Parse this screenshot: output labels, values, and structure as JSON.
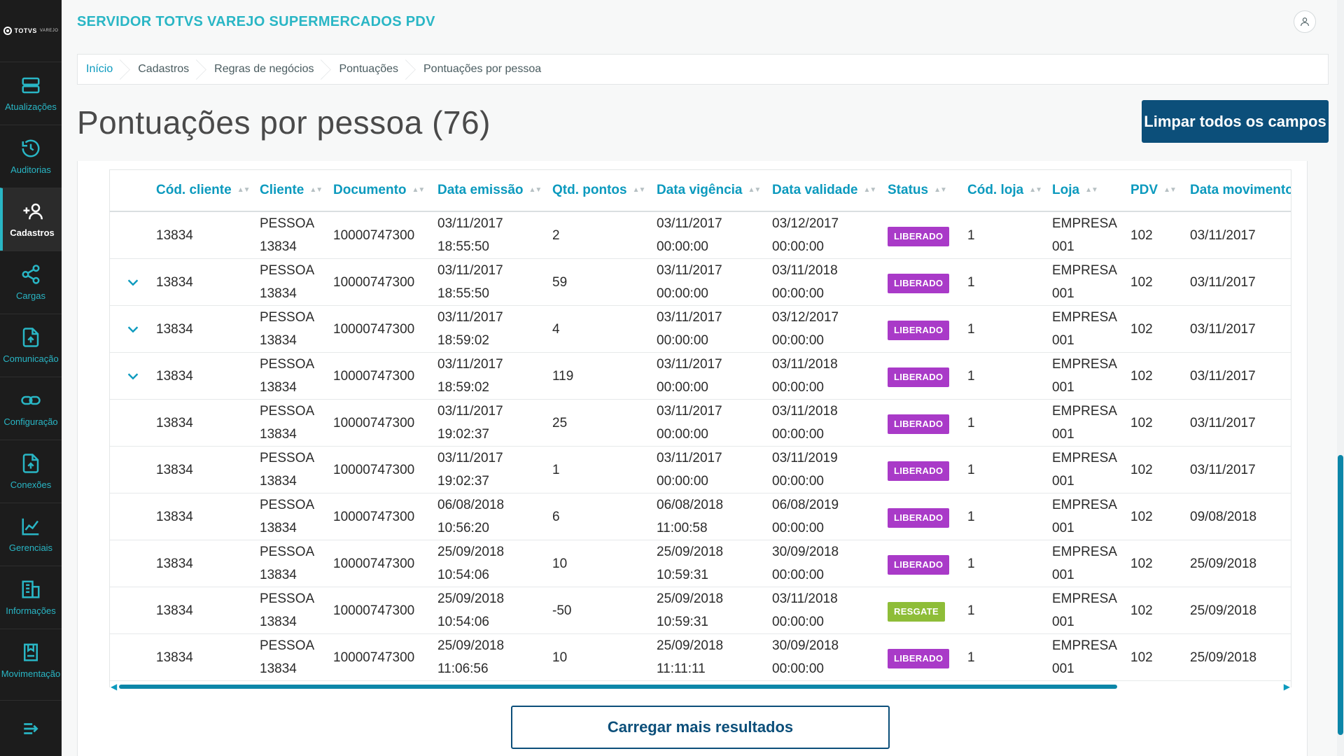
{
  "brand": {
    "name": "TOTVS",
    "sub": "VAREJO"
  },
  "header": {
    "title": "SERVIDOR TOTVS VAREJO SUPERMERCADOS PDV"
  },
  "sidebar": {
    "items": [
      {
        "label": "Atualizações",
        "icon": "server-icon"
      },
      {
        "label": "Auditorias",
        "icon": "history-icon"
      },
      {
        "label": "Cadastros",
        "icon": "add-user-icon",
        "active": true
      },
      {
        "label": "Cargas",
        "icon": "share-icon"
      },
      {
        "label": "Comunicação",
        "icon": "file-upload-icon"
      },
      {
        "label": "Configuração",
        "icon": "link-icon"
      },
      {
        "label": "Conexões",
        "icon": "file-upload-icon"
      },
      {
        "label": "Gerenciais",
        "icon": "chart-icon"
      },
      {
        "label": "Informações",
        "icon": "building-icon"
      },
      {
        "label": "Movimentação",
        "icon": "book-icon"
      }
    ]
  },
  "breadcrumb": [
    "Início",
    "Cadastros",
    "Regras de negócios",
    "Pontuações",
    "Pontuações por pessoa"
  ],
  "page": {
    "title": "Pontuações por pessoa (76)",
    "clear_button": "Limpar todos os campos",
    "load_more": "Carregar mais resultados"
  },
  "table": {
    "columns": [
      "Cód. cliente",
      "Cliente",
      "Documento",
      "Data emissão",
      "Qtd. pontos",
      "Data vigência",
      "Data validade",
      "Status",
      "Cód. loja",
      "Loja",
      "PDV",
      "Data movimento"
    ],
    "rows": [
      {
        "expand": false,
        "cod": "13834",
        "cliente1": "PESSOA",
        "cliente2": "13834",
        "doc": "10000747300",
        "emissao1": "03/11/2017",
        "emissao2": "18:55:50",
        "pontos": "2",
        "vig1": "03/11/2017",
        "vig2": "00:00:00",
        "val1": "03/12/2017",
        "val2": "00:00:00",
        "status": "LIBERADO",
        "loja_cod": "1",
        "loja1": "EMPRESA",
        "loja2": "001",
        "pdv": "102",
        "mov": "03/11/2017"
      },
      {
        "expand": true,
        "cod": "13834",
        "cliente1": "PESSOA",
        "cliente2": "13834",
        "doc": "10000747300",
        "emissao1": "03/11/2017",
        "emissao2": "18:55:50",
        "pontos": "59",
        "vig1": "03/11/2017",
        "vig2": "00:00:00",
        "val1": "03/11/2018",
        "val2": "00:00:00",
        "status": "LIBERADO",
        "loja_cod": "1",
        "loja1": "EMPRESA",
        "loja2": "001",
        "pdv": "102",
        "mov": "03/11/2017"
      },
      {
        "expand": true,
        "cod": "13834",
        "cliente1": "PESSOA",
        "cliente2": "13834",
        "doc": "10000747300",
        "emissao1": "03/11/2017",
        "emissao2": "18:59:02",
        "pontos": "4",
        "vig1": "03/11/2017",
        "vig2": "00:00:00",
        "val1": "03/12/2017",
        "val2": "00:00:00",
        "status": "LIBERADO",
        "loja_cod": "1",
        "loja1": "EMPRESA",
        "loja2": "001",
        "pdv": "102",
        "mov": "03/11/2017"
      },
      {
        "expand": true,
        "cod": "13834",
        "cliente1": "PESSOA",
        "cliente2": "13834",
        "doc": "10000747300",
        "emissao1": "03/11/2017",
        "emissao2": "18:59:02",
        "pontos": "119",
        "vig1": "03/11/2017",
        "vig2": "00:00:00",
        "val1": "03/11/2018",
        "val2": "00:00:00",
        "status": "LIBERADO",
        "loja_cod": "1",
        "loja1": "EMPRESA",
        "loja2": "001",
        "pdv": "102",
        "mov": "03/11/2017"
      },
      {
        "expand": false,
        "cod": "13834",
        "cliente1": "PESSOA",
        "cliente2": "13834",
        "doc": "10000747300",
        "emissao1": "03/11/2017",
        "emissao2": "19:02:37",
        "pontos": "25",
        "vig1": "03/11/2017",
        "vig2": "00:00:00",
        "val1": "03/11/2018",
        "val2": "00:00:00",
        "status": "LIBERADO",
        "loja_cod": "1",
        "loja1": "EMPRESA",
        "loja2": "001",
        "pdv": "102",
        "mov": "03/11/2017"
      },
      {
        "expand": false,
        "cod": "13834",
        "cliente1": "PESSOA",
        "cliente2": "13834",
        "doc": "10000747300",
        "emissao1": "03/11/2017",
        "emissao2": "19:02:37",
        "pontos": "1",
        "vig1": "03/11/2017",
        "vig2": "00:00:00",
        "val1": "03/11/2019",
        "val2": "00:00:00",
        "status": "LIBERADO",
        "loja_cod": "1",
        "loja1": "EMPRESA",
        "loja2": "001",
        "pdv": "102",
        "mov": "03/11/2017"
      },
      {
        "expand": false,
        "cod": "13834",
        "cliente1": "PESSOA",
        "cliente2": "13834",
        "doc": "10000747300",
        "emissao1": "06/08/2018",
        "emissao2": "10:56:20",
        "pontos": "6",
        "vig1": "06/08/2018",
        "vig2": "11:00:58",
        "val1": "06/08/2019",
        "val2": "00:00:00",
        "status": "LIBERADO",
        "loja_cod": "1",
        "loja1": "EMPRESA",
        "loja2": "001",
        "pdv": "102",
        "mov": "09/08/2018"
      },
      {
        "expand": false,
        "cod": "13834",
        "cliente1": "PESSOA",
        "cliente2": "13834",
        "doc": "10000747300",
        "emissao1": "25/09/2018",
        "emissao2": "10:54:06",
        "pontos": "10",
        "vig1": "25/09/2018",
        "vig2": "10:59:31",
        "val1": "30/09/2018",
        "val2": "00:00:00",
        "status": "LIBERADO",
        "loja_cod": "1",
        "loja1": "EMPRESA",
        "loja2": "001",
        "pdv": "102",
        "mov": "25/09/2018"
      },
      {
        "expand": false,
        "cod": "13834",
        "cliente1": "PESSOA",
        "cliente2": "13834",
        "doc": "10000747300",
        "emissao1": "25/09/2018",
        "emissao2": "10:54:06",
        "pontos": "-50",
        "vig1": "25/09/2018",
        "vig2": "10:59:31",
        "val1": "03/11/2018",
        "val2": "00:00:00",
        "status": "RESGATE",
        "loja_cod": "1",
        "loja1": "EMPRESA",
        "loja2": "001",
        "pdv": "102",
        "mov": "25/09/2018"
      },
      {
        "expand": false,
        "cod": "13834",
        "cliente1": "PESSOA",
        "cliente2": "13834",
        "doc": "10000747300",
        "emissao1": "25/09/2018",
        "emissao2": "11:06:56",
        "pontos": "10",
        "vig1": "25/09/2018",
        "vig2": "11:11:11",
        "val1": "30/09/2018",
        "val2": "00:00:00",
        "status": "LIBERADO",
        "loja_cod": "1",
        "loja1": "EMPRESA",
        "loja2": "001",
        "pdv": "102",
        "mov": "25/09/2018"
      }
    ]
  },
  "colors": {
    "accent": "#29b6c5",
    "link": "#0c9abe",
    "primary": "#0c4f7a",
    "liberado": "#a93ac8",
    "resgate": "#8ebd38",
    "sidebar": "#1c1c1c"
  }
}
